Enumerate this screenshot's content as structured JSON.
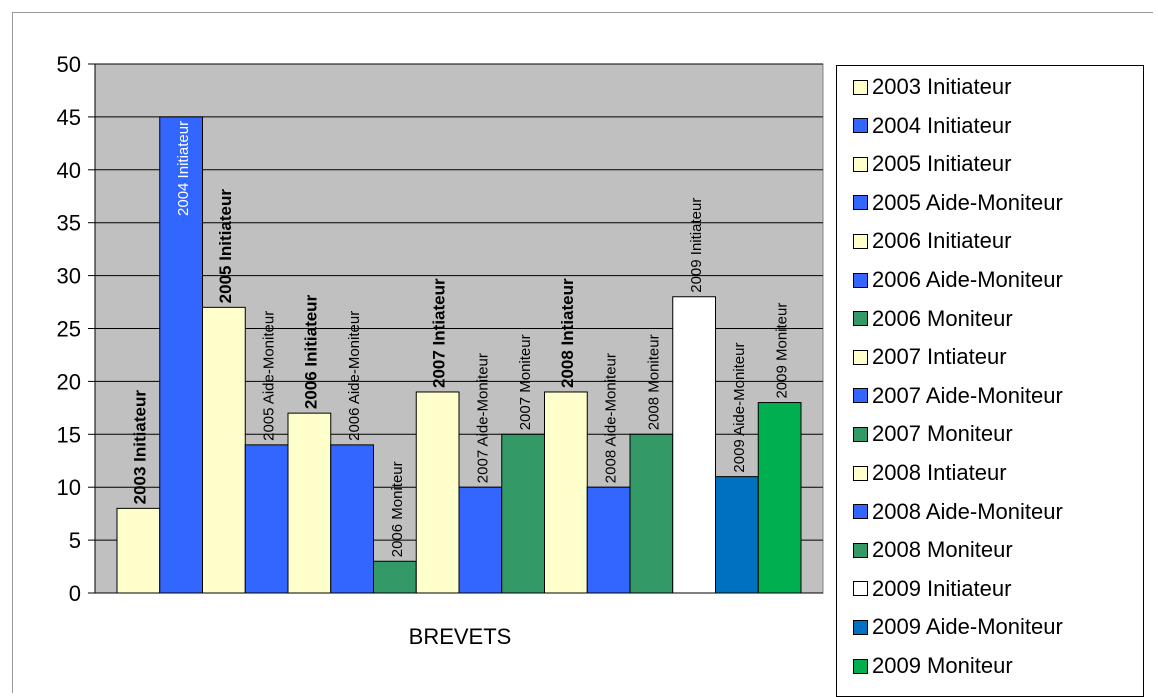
{
  "chart_data": {
    "type": "bar",
    "xlabel": "BREVETS",
    "ylabel": "",
    "ylim": [
      0,
      50
    ],
    "yticks": [
      0,
      5,
      10,
      15,
      20,
      25,
      30,
      35,
      40,
      45,
      50
    ],
    "grid": true,
    "legend_position": "right",
    "plot_background": "#C0C0C0",
    "series": [
      {
        "name": "2003 Initiateur",
        "label": "2003 Initiateur",
        "value": 8,
        "color": "#FFFFCC",
        "bold_label": true
      },
      {
        "name": "2004 Initiateur",
        "label": "2004 Initiateur",
        "value": 45,
        "color": "#3366FF",
        "bold_label": false
      },
      {
        "name": "2005 Initiateur",
        "label": "2005 Initiateur",
        "value": 27,
        "color": "#FFFFCC",
        "bold_label": true
      },
      {
        "name": "2005 Aide-Moniteur",
        "label": "2005 Aide-Moniteur",
        "value": 14,
        "color": "#3366FF",
        "bold_label": false
      },
      {
        "name": "2006 Initiateur",
        "label": "2006 Initiateur",
        "value": 17,
        "color": "#FFFFCC",
        "bold_label": true
      },
      {
        "name": "2006 Aide-Moniteur",
        "label": "2006 Aide-Moniteur",
        "value": 14,
        "color": "#3366FF",
        "bold_label": false
      },
      {
        "name": "2006 Moniteur",
        "label": "2006 Moniteur",
        "value": 3,
        "color": "#339966",
        "bold_label": false
      },
      {
        "name": "2007 Intiateur",
        "label": "2007 Intiateur",
        "value": 19,
        "color": "#FFFFCC",
        "bold_label": true
      },
      {
        "name": "2007 Aide-Moniteur",
        "label": "2007 Aide-Moniteur",
        "value": 10,
        "color": "#3366FF",
        "bold_label": false
      },
      {
        "name": "2007 Moniteur",
        "label": "2007 Moniteur",
        "value": 15,
        "color": "#339966",
        "bold_label": false
      },
      {
        "name": "2008 Intiateur",
        "label": "2008 Intiateur",
        "value": 19,
        "color": "#FFFFCC",
        "bold_label": true
      },
      {
        "name": "2008 Aide-Moniteur",
        "label": "2008 Aide-Moniteur",
        "value": 10,
        "color": "#3366FF",
        "bold_label": false
      },
      {
        "name": "2008 Moniteur",
        "label": "2008 Moniteur",
        "value": 15,
        "color": "#339966",
        "bold_label": false
      },
      {
        "name": "2009 Initiateur",
        "label": "2009 Initiateur",
        "value": 28,
        "color": "#FFFFFF",
        "bold_label": false
      },
      {
        "name": "2009 Aide-Moniteur",
        "label": "2009 Aide-Moniteur",
        "value": 11,
        "color": "#0070C0",
        "bold_label": false
      },
      {
        "name": "2009 Moniteur",
        "label": "2009 Moniteur",
        "value": 18,
        "color": "#00B050",
        "bold_label": false
      }
    ]
  }
}
